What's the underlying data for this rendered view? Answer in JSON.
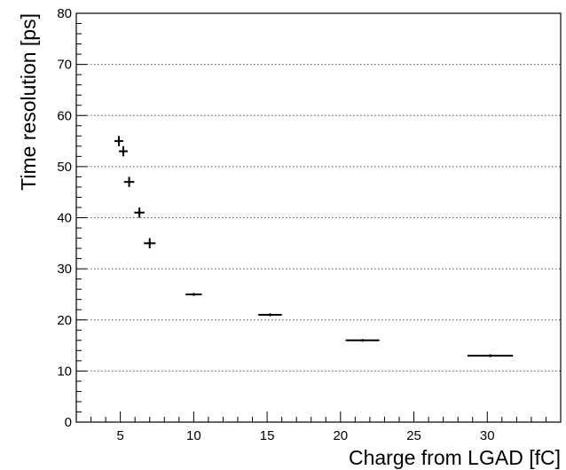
{
  "chart_data": {
    "type": "scatter",
    "xlabel": "Charge from LGAD [fC]",
    "ylabel": "Time resolution [ps]",
    "xlim": [
      2,
      35
    ],
    "ylim": [
      0,
      80
    ],
    "x_ticks": [
      5,
      10,
      15,
      20,
      25,
      30
    ],
    "y_ticks": [
      0,
      10,
      20,
      30,
      40,
      50,
      60,
      70,
      80
    ],
    "grid": {
      "x": false,
      "y": true,
      "style": "dotted"
    },
    "series": [
      {
        "points": [
          {
            "x": 4.9,
            "y": 55,
            "x_err": 0.3,
            "y_err": 1.0
          },
          {
            "x": 5.2,
            "y": 53,
            "x_err": 0.3,
            "y_err": 1.0
          },
          {
            "x": 5.6,
            "y": 47,
            "x_err": 0.35,
            "y_err": 1.0
          },
          {
            "x": 6.3,
            "y": 41,
            "x_err": 0.35,
            "y_err": 1.0
          },
          {
            "x": 7.0,
            "y": 35,
            "x_err": 0.4,
            "y_err": 1.0
          },
          {
            "x": 10.0,
            "y": 25,
            "x_err": 0.55,
            "y_err": 0.2
          },
          {
            "x": 15.2,
            "y": 21,
            "x_err": 0.8,
            "y_err": 0.2
          },
          {
            "x": 21.5,
            "y": 16,
            "x_err": 1.15,
            "y_err": 0.2
          },
          {
            "x": 30.2,
            "y": 13,
            "x_err": 1.55,
            "y_err": 0.2
          }
        ]
      }
    ]
  }
}
